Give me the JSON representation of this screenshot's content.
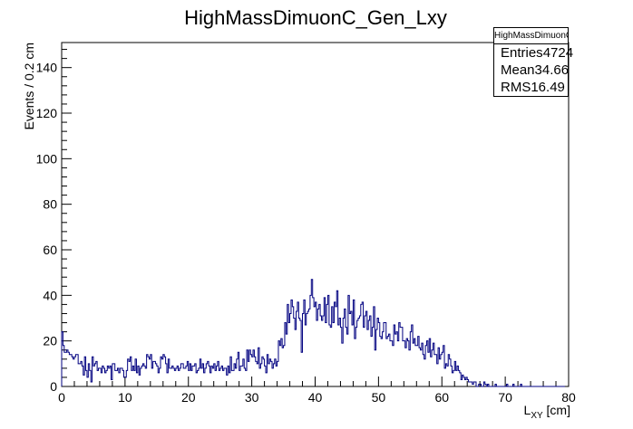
{
  "chart_data": {
    "type": "histogram",
    "title": "HighMassDimuonC_Gen_Lxy",
    "xlabel_main": "L",
    "xlabel_sub": "XY",
    "xlabel_unit": " [cm]",
    "ylabel": "Events / 0.2 cm",
    "xlim": [
      0,
      80
    ],
    "ylim": [
      0,
      151
    ],
    "bin_width": 0.2,
    "xticks": [
      "0",
      "10",
      "20",
      "30",
      "40",
      "50",
      "60",
      "70",
      "80"
    ],
    "yticks": [
      "0",
      "20",
      "40",
      "60",
      "80",
      "100",
      "120",
      "140"
    ],
    "line_color": "#000080",
    "stats": {
      "name": "HighMassDimuonC_Gen_Lxy",
      "entries_label": "Entries",
      "entries": "4724",
      "mean_label": "Mean",
      "mean": "34.66",
      "rms_label": "RMS",
      "rms": "16.49"
    },
    "values": [
      24,
      18,
      15,
      15,
      16,
      15,
      14,
      14,
      13,
      12,
      13,
      14,
      14,
      10,
      10,
      11,
      9,
      5,
      13,
      7,
      4,
      10,
      7,
      2,
      13,
      9,
      10,
      11,
      7,
      8,
      8,
      6,
      9,
      8,
      6,
      7,
      9,
      8,
      9,
      3,
      10,
      10,
      7,
      7,
      8,
      6,
      8,
      8,
      7,
      4,
      4,
      7,
      12,
      11,
      13,
      7,
      9,
      7,
      12,
      6,
      9,
      5,
      8,
      9,
      10,
      9,
      8,
      14,
      13,
      12,
      14,
      8,
      11,
      11,
      10,
      9,
      6,
      8,
      13,
      12,
      14,
      13,
      10,
      6,
      12,
      8,
      8,
      9,
      8,
      7,
      8,
      9,
      7,
      8,
      10,
      10,
      8,
      8,
      9,
      11,
      7,
      10,
      7,
      9,
      9,
      10,
      6,
      7,
      8,
      12,
      8,
      10,
      6,
      8,
      10,
      11,
      9,
      6,
      9,
      8,
      10,
      7,
      9,
      11,
      7,
      8,
      9,
      7,
      8,
      8,
      5,
      9,
      6,
      13,
      7,
      7,
      10,
      8,
      12,
      15,
      7,
      9,
      9,
      12,
      8,
      7,
      16,
      11,
      16,
      14,
      13,
      16,
      13,
      11,
      10,
      17,
      8,
      10,
      13,
      12,
      9,
      6,
      14,
      10,
      12,
      11,
      8,
      10,
      12,
      9,
      11,
      20,
      18,
      21,
      17,
      18,
      28,
      23,
      36,
      28,
      32,
      38,
      35,
      30,
      25,
      33,
      37,
      30,
      29,
      15,
      32,
      38,
      27,
      32,
      33,
      34,
      40,
      47,
      39,
      35,
      37,
      29,
      34,
      36,
      31,
      29,
      31,
      39,
      28,
      36,
      40,
      27,
      26,
      35,
      28,
      37,
      35,
      42,
      27,
      30,
      26,
      19,
      30,
      34,
      26,
      23,
      40,
      32,
      33,
      27,
      38,
      21,
      26,
      29,
      30,
      31,
      36,
      37,
      26,
      31,
      33,
      25,
      29,
      31,
      22,
      26,
      35,
      16,
      25,
      30,
      28,
      22,
      21,
      24,
      28,
      28,
      21,
      22,
      23,
      20,
      20,
      18,
      27,
      23,
      24,
      20,
      28,
      26,
      26,
      20,
      20,
      17,
      21,
      20,
      16,
      24,
      27,
      19,
      21,
      18,
      18,
      22,
      17,
      16,
      19,
      14,
      12,
      18,
      20,
      15,
      21,
      13,
      16,
      19,
      14,
      14,
      10,
      17,
      12,
      14,
      15,
      18,
      8,
      10,
      9,
      14,
      12,
      9,
      6,
      7,
      11,
      7,
      9,
      7,
      6,
      3,
      5,
      4,
      3,
      4,
      3,
      2,
      2,
      2,
      1,
      2,
      2,
      0,
      0,
      1,
      1,
      0,
      0,
      2,
      1,
      0,
      1,
      0,
      0,
      0,
      0,
      0,
      1,
      0,
      0,
      0,
      0,
      0,
      0,
      0,
      0,
      1,
      0,
      0,
      0,
      0,
      1,
      0,
      0,
      0,
      0,
      0,
      1,
      0,
      0,
      0,
      0,
      0,
      0,
      0,
      0,
      0,
      0,
      0,
      0,
      0,
      0,
      0,
      0,
      0,
      0,
      0,
      0,
      0,
      0,
      0,
      0,
      0,
      0,
      0,
      0,
      0,
      0,
      0,
      0,
      0,
      0
    ]
  }
}
